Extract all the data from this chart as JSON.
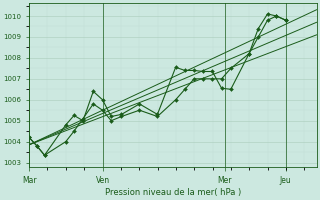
{
  "background_color": "#cce8e0",
  "grid_color_major": "#aaccbb",
  "grid_color_minor": "#c0ddd5",
  "line_color": "#1a5c1a",
  "text_color": "#1a5c1a",
  "xlabel": "Pression niveau de la mer( hPa )",
  "ylim": [
    1002.8,
    1010.6
  ],
  "yticks": [
    1003,
    1004,
    1005,
    1006,
    1007,
    1008,
    1009,
    1010
  ],
  "day_labels": [
    "Mar",
    "Ven",
    "Mer",
    "Jeu"
  ],
  "day_positions": [
    0,
    0.286,
    0.762,
    1.0
  ],
  "xlim": [
    0,
    1.12
  ],
  "series1_x": [
    0.0,
    0.03,
    0.06,
    0.143,
    0.175,
    0.21,
    0.25,
    0.286,
    0.32,
    0.36,
    0.43,
    0.5,
    0.571,
    0.607,
    0.643,
    0.679,
    0.714,
    0.75,
    0.786,
    0.857,
    0.893,
    0.929,
    0.964,
    1.0
  ],
  "series1_y": [
    1004.2,
    1003.8,
    1003.35,
    1004.8,
    1005.25,
    1005.0,
    1006.4,
    1006.0,
    1005.2,
    1005.3,
    1005.8,
    1005.3,
    1007.55,
    1007.4,
    1007.4,
    1007.35,
    1007.35,
    1006.55,
    1006.5,
    1008.2,
    1009.4,
    1010.1,
    1010.0,
    1009.8
  ],
  "series2_x": [
    0.0,
    0.03,
    0.06,
    0.143,
    0.175,
    0.21,
    0.25,
    0.286,
    0.32,
    0.36,
    0.43,
    0.5,
    0.571,
    0.607,
    0.643,
    0.679,
    0.714,
    0.75,
    0.786,
    0.857,
    0.893,
    0.929,
    0.964,
    1.0
  ],
  "series2_y": [
    1004.2,
    1003.8,
    1003.35,
    1004.0,
    1004.5,
    1005.1,
    1005.8,
    1005.5,
    1005.0,
    1005.2,
    1005.5,
    1005.2,
    1006.0,
    1006.5,
    1007.0,
    1007.0,
    1007.0,
    1007.0,
    1007.5,
    1008.2,
    1009.0,
    1009.8,
    1010.0,
    1009.8
  ],
  "trend1_x": [
    0.0,
    1.12
  ],
  "trend1_y": [
    1003.85,
    1009.7
  ],
  "trend2_x": [
    0.0,
    1.12
  ],
  "trend2_y": [
    1003.85,
    1010.3
  ],
  "trend3_x": [
    0.0,
    1.12
  ],
  "trend3_y": [
    1003.85,
    1009.1
  ]
}
